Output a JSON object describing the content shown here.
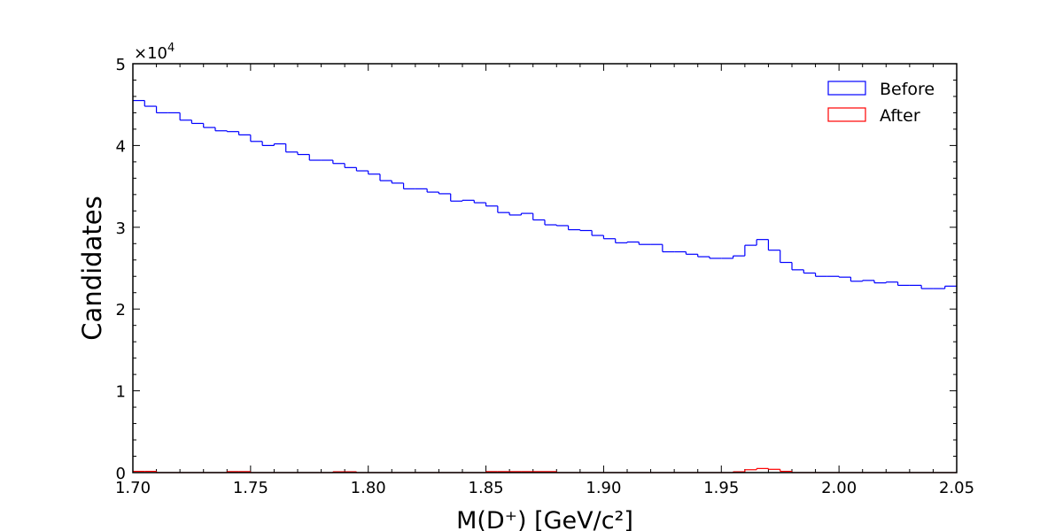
{
  "chart_data": {
    "type": "histogram",
    "xlabel": "M(D⁺) [GeV/c²]",
    "ylabel": "Candidates",
    "xlim": [
      1.7,
      2.05
    ],
    "ylim": [
      0,
      50000
    ],
    "x_ticks": [
      "1.70",
      "1.75",
      "1.80",
      "1.85",
      "1.90",
      "1.95",
      "2.00",
      "2.05"
    ],
    "y_ticks": [
      "0",
      "1",
      "2",
      "3",
      "4",
      "5"
    ],
    "y_multiplier": {
      "base": "×10",
      "exponent": "4"
    },
    "legend_position": "top-right",
    "grid": false,
    "bin_edges": [
      1.7,
      1.705,
      1.71,
      1.715,
      1.72,
      1.725,
      1.73,
      1.735,
      1.74,
      1.745,
      1.75,
      1.755,
      1.76,
      1.765,
      1.77,
      1.775,
      1.78,
      1.785,
      1.79,
      1.795,
      1.8,
      1.805,
      1.81,
      1.815,
      1.82,
      1.825,
      1.83,
      1.835,
      1.84,
      1.845,
      1.85,
      1.855,
      1.86,
      1.865,
      1.87,
      1.875,
      1.88,
      1.885,
      1.89,
      1.895,
      1.9,
      1.905,
      1.91,
      1.915,
      1.92,
      1.925,
      1.93,
      1.935,
      1.94,
      1.945,
      1.95,
      1.955,
      1.96,
      1.965,
      1.97,
      1.975,
      1.98,
      1.985,
      1.99,
      1.995,
      2.0,
      2.005,
      2.01,
      2.015,
      2.02,
      2.025,
      2.03,
      2.035,
      2.04,
      2.045,
      2.05
    ],
    "series": [
      {
        "name": "Before",
        "color": "#0000ff",
        "values": [
          45500,
          44800,
          44000,
          44000,
          43100,
          42700,
          42200,
          41800,
          41700,
          41300,
          40500,
          40000,
          40200,
          39200,
          38900,
          38200,
          38200,
          37800,
          37300,
          36900,
          36500,
          35700,
          35400,
          34700,
          34700,
          34300,
          34100,
          33200,
          33300,
          33000,
          32600,
          31800,
          31500,
          31700,
          30900,
          30300,
          30200,
          29700,
          29600,
          29000,
          28600,
          28100,
          28200,
          27900,
          27900,
          27000,
          27000,
          26700,
          26400,
          26200,
          26200,
          26500,
          27800,
          28500,
          27200,
          25700,
          24800,
          24400,
          24000,
          24000,
          23900,
          23400,
          23500,
          23200,
          23300,
          22900,
          22900,
          22500,
          22500,
          22800
        ]
      },
      {
        "name": "After",
        "color": "#ff0000",
        "values": [
          150,
          150,
          0,
          0,
          0,
          0,
          0,
          0,
          120,
          120,
          0,
          0,
          0,
          0,
          0,
          0,
          0,
          100,
          100,
          0,
          0,
          0,
          0,
          0,
          0,
          0,
          0,
          0,
          0,
          0,
          120,
          120,
          120,
          120,
          120,
          120,
          0,
          0,
          0,
          0,
          0,
          0,
          0,
          0,
          0,
          0,
          0,
          0,
          0,
          0,
          0,
          100,
          350,
          500,
          400,
          150,
          0,
          0,
          0,
          0,
          0,
          0,
          0,
          0,
          0,
          0,
          0,
          0,
          0,
          0
        ]
      }
    ]
  }
}
